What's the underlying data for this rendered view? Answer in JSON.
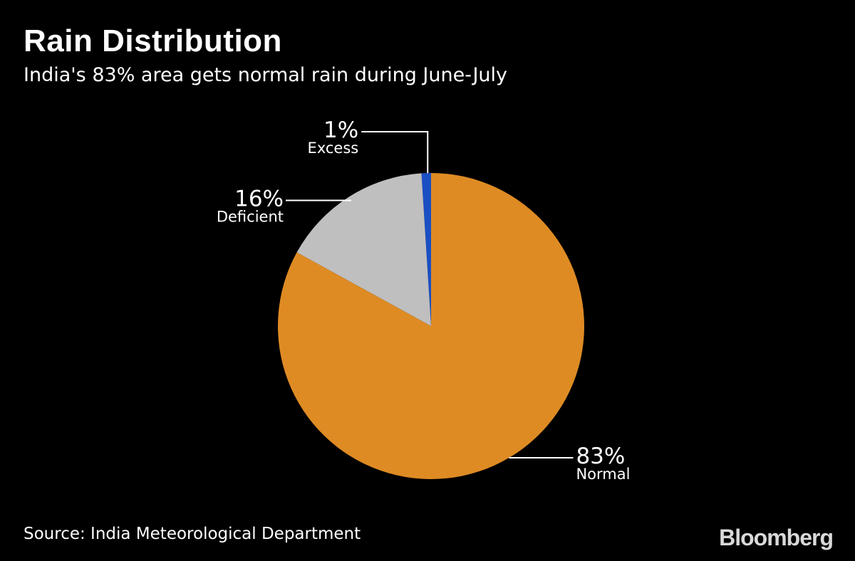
{
  "header": {
    "title": "Rain Distribution",
    "subtitle": "India's 83% area gets normal rain during June-July"
  },
  "chart_data": {
    "type": "pie",
    "title": "Rain Distribution",
    "subtitle": "India's 83% area gets normal rain during June-July",
    "slices": [
      {
        "label": "Excess",
        "value": 1,
        "value_label": "1%",
        "color": "#1a4fc4"
      },
      {
        "label": "Normal",
        "value": 83,
        "value_label": "83%",
        "color": "#de8b24"
      },
      {
        "label": "Deficient",
        "value": 16,
        "value_label": "16%",
        "color": "#bfbfbf"
      }
    ],
    "legend": "none"
  },
  "footer": {
    "source": "Source: India Meteorological Department",
    "brand": "Bloomberg"
  }
}
